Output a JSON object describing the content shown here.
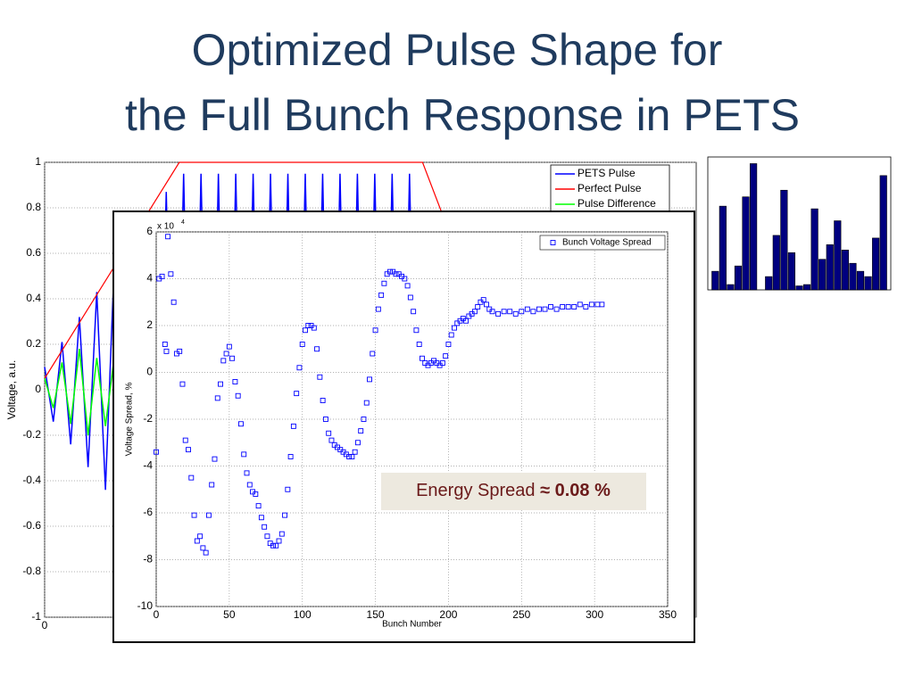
{
  "slide": {
    "title_lines": [
      "Optimized Pulse Shape for",
      "the Full Bunch Response in PETS"
    ]
  },
  "chart_data": [
    {
      "type": "line",
      "y_label": "Voltage, a.u.",
      "xlim": [
        0,
        300
      ],
      "xticks": [
        0
      ],
      "ylim": [
        -1,
        1
      ],
      "yticks": [
        1,
        0.8,
        0.6,
        0.4,
        0.2,
        0,
        -0.2,
        -0.4,
        -0.6,
        -0.8,
        -1
      ],
      "grid": true,
      "legend": "upper right",
      "series": [
        {
          "name": "PETS Pulse",
          "color": "#0000ff",
          "x": [
            0,
            4,
            8,
            12,
            16,
            20,
            24,
            28,
            32,
            36,
            40,
            44,
            48,
            52,
            56,
            60,
            64,
            68,
            72,
            76,
            80,
            84,
            88,
            92,
            96,
            100,
            104,
            108,
            112,
            116,
            120,
            124,
            128,
            132,
            136,
            140,
            144,
            148,
            152,
            156,
            160,
            164,
            168,
            172,
            176
          ],
          "values": [
            0.1,
            -0.14,
            0.21,
            -0.24,
            0.32,
            -0.34,
            0.43,
            -0.44,
            0.54,
            -0.54,
            0.65,
            -0.64,
            0.76,
            -0.74,
            0.87,
            -0.84,
            0.95,
            -0.9,
            0.95,
            -0.9,
            0.95,
            -0.9,
            0.95,
            -0.9,
            0.95,
            -0.9,
            0.95,
            -0.9,
            0.95,
            -0.9,
            0.95,
            -0.9,
            0.95,
            -0.9,
            0.95,
            -0.9,
            0.95,
            -0.9,
            0.95,
            -0.9,
            0.95,
            -0.9,
            0.95,
            -0.9,
            0
          ]
        },
        {
          "name": "Perfect Pulse",
          "color": "#ff0000",
          "x": [
            0,
            62,
            174,
            190
          ],
          "values": [
            0.05,
            1,
            1,
            0.6
          ]
        },
        {
          "name": "Pulse Difference",
          "color": "#00ff00",
          "x": [
            0,
            4,
            8,
            12,
            16,
            20,
            24,
            28,
            32,
            36,
            40,
            44,
            48,
            52,
            56,
            60,
            64,
            68,
            72,
            76,
            80,
            84,
            88,
            92,
            96,
            100,
            104,
            108,
            112,
            116,
            120,
            124,
            128,
            132,
            136,
            140,
            144,
            148,
            152,
            156,
            160,
            164,
            168,
            172,
            176
          ],
          "values": [
            0.05,
            -0.08,
            0.12,
            -0.15,
            0.18,
            -0.2,
            0.14,
            -0.16,
            0.14,
            -0.16,
            0.14,
            -0.16,
            0.14,
            -0.16,
            0.14,
            -0.16,
            0.14,
            -0.16,
            0.14,
            -0.16,
            0.14,
            -0.16,
            0.14,
            -0.16,
            0.14,
            -0.16,
            0.14,
            -0.16,
            0.14,
            -0.16,
            0.14,
            -0.16,
            0.14,
            -0.16,
            0.14,
            -0.16,
            0.14,
            -0.16,
            0.14,
            -0.16,
            0.14,
            -0.16,
            0.14,
            -0.16,
            0
          ]
        }
      ]
    },
    {
      "type": "scatter",
      "x_label": "Bunch Number",
      "y_label": "Voltage Spread, %",
      "multiplier": "x 10",
      "multiplier_exponent": "4",
      "xlim": [
        0,
        350
      ],
      "xticks": [
        0,
        50,
        100,
        150,
        200,
        250,
        300,
        350
      ],
      "ylim": [
        -10,
        6
      ],
      "yticks": [
        6,
        4,
        2,
        0,
        -2,
        -4,
        -6,
        -8,
        -10
      ],
      "grid": true,
      "legend": "upper right",
      "annotation": "Energy Spread ",
      "annotation_bold": "≈ 0.08 %",
      "series": [
        {
          "name": "Bunch Voltage Spread",
          "color": "#0000ff",
          "x": [
            0,
            2,
            4,
            6,
            7,
            8,
            10,
            12,
            14,
            16,
            18,
            20,
            22,
            24,
            26,
            28,
            30,
            32,
            34,
            36,
            38,
            40,
            42,
            44,
            46,
            48,
            50,
            52,
            54,
            56,
            58,
            60,
            62,
            64,
            66,
            68,
            70,
            72,
            74,
            76,
            78,
            80,
            82,
            84,
            86,
            88,
            90,
            92,
            94,
            96,
            98,
            100,
            102,
            104,
            106,
            108,
            110,
            112,
            114,
            116,
            118,
            120,
            122,
            124,
            126,
            128,
            130,
            132,
            134,
            136,
            138,
            140,
            142,
            144,
            146,
            148,
            150,
            152,
            154,
            156,
            158,
            160,
            162,
            164,
            166,
            168,
            170,
            172,
            174,
            176,
            178,
            180,
            182,
            184,
            186,
            188,
            190,
            192,
            194,
            196,
            198,
            200,
            202,
            204,
            206,
            208,
            210,
            212,
            214,
            216,
            218,
            220,
            222,
            224,
            226,
            228,
            230,
            234,
            238,
            242,
            246,
            250,
            254,
            258,
            262,
            266,
            270,
            274,
            278,
            282,
            286,
            290,
            294,
            298,
            302,
            305
          ],
          "values": [
            -3.4,
            4.0,
            4.1,
            1.2,
            0.9,
            5.8,
            4.2,
            3.0,
            0.8,
            0.9,
            -0.5,
            -2.9,
            -3.3,
            -4.5,
            -6.1,
            -7.2,
            -7.0,
            -7.5,
            -7.7,
            -6.1,
            -4.8,
            -3.7,
            -1.1,
            -0.5,
            0.5,
            0.8,
            1.1,
            0.6,
            -0.4,
            -1.0,
            -2.2,
            -3.5,
            -4.3,
            -4.8,
            -5.1,
            -5.2,
            -5.7,
            -6.2,
            -6.6,
            -7.0,
            -7.3,
            -7.4,
            -7.4,
            -7.2,
            -6.9,
            -6.1,
            -5.0,
            -3.6,
            -2.3,
            -0.9,
            0.2,
            1.2,
            1.8,
            2.0,
            2.0,
            1.9,
            1.0,
            -0.2,
            -1.2,
            -2.0,
            -2.6,
            -2.9,
            -3.1,
            -3.2,
            -3.3,
            -3.4,
            -3.5,
            -3.6,
            -3.6,
            -3.4,
            -3.0,
            -2.5,
            -2.0,
            -1.3,
            -0.3,
            0.8,
            1.8,
            2.7,
            3.3,
            3.8,
            4.2,
            4.3,
            4.3,
            4.2,
            4.2,
            4.1,
            4.0,
            3.7,
            3.2,
            2.6,
            1.8,
            1.2,
            0.6,
            0.4,
            0.3,
            0.4,
            0.5,
            0.4,
            0.3,
            0.4,
            0.7,
            1.2,
            1.6,
            1.9,
            2.1,
            2.2,
            2.3,
            2.2,
            2.4,
            2.5,
            2.6,
            2.8,
            3.0,
            3.1,
            2.9,
            2.7,
            2.6,
            2.5,
            2.6,
            2.6,
            2.5,
            2.6,
            2.7,
            2.6,
            2.7,
            2.7,
            2.8,
            2.7,
            2.8,
            2.8,
            2.8,
            2.9,
            2.8,
            2.9,
            2.9,
            2.9
          ]
        }
      ]
    },
    {
      "type": "bar",
      "ylim": [
        0,
        1
      ],
      "color": "#00007f",
      "values": [
        0.14,
        0.63,
        0.04,
        0.18,
        0.7,
        0.95,
        0,
        0.1,
        0.41,
        0.75,
        0.28,
        0.03,
        0.04,
        0.61,
        0.23,
        0.34,
        0.52,
        0.3,
        0.2,
        0.14,
        0.1,
        0.39,
        0.86
      ]
    }
  ]
}
